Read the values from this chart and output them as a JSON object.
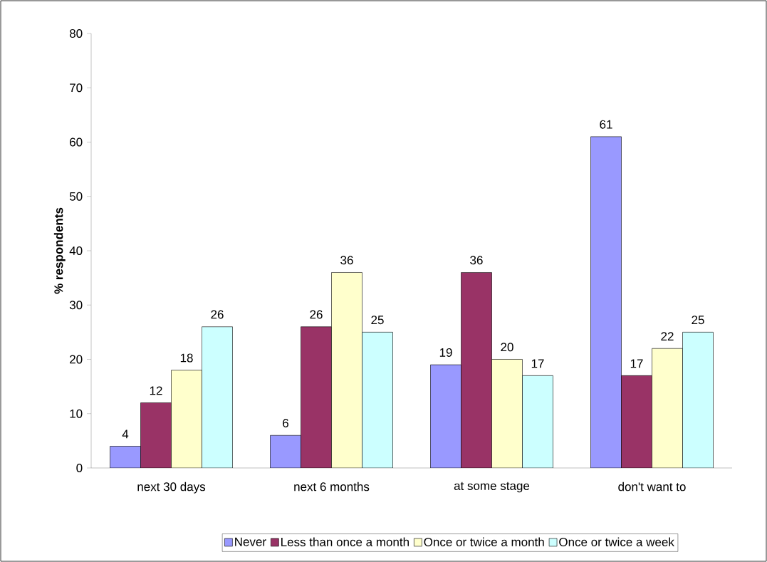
{
  "chart_data": {
    "type": "bar",
    "ylabel": "% respondents",
    "categories": [
      "next 30 days",
      "next 6 months",
      "at some stage",
      "don't want to"
    ],
    "series": [
      {
        "name": "Never",
        "color": "#9999ff",
        "values": [
          4,
          6,
          19,
          61
        ]
      },
      {
        "name": "Less than once a month",
        "color": "#993366",
        "values": [
          12,
          26,
          36,
          17
        ]
      },
      {
        "name": "Once or twice a month",
        "color": "#ffffcc",
        "values": [
          18,
          36,
          20,
          22
        ]
      },
      {
        "name": "Once or twice a week",
        "color": "#ccffff",
        "values": [
          26,
          25,
          17,
          25
        ]
      }
    ],
    "ylim": [
      0,
      80
    ],
    "yticks": [
      0,
      10,
      20,
      30,
      40,
      50,
      60,
      70,
      80
    ],
    "data_labels": true,
    "legend": "bottom",
    "grid": false
  }
}
